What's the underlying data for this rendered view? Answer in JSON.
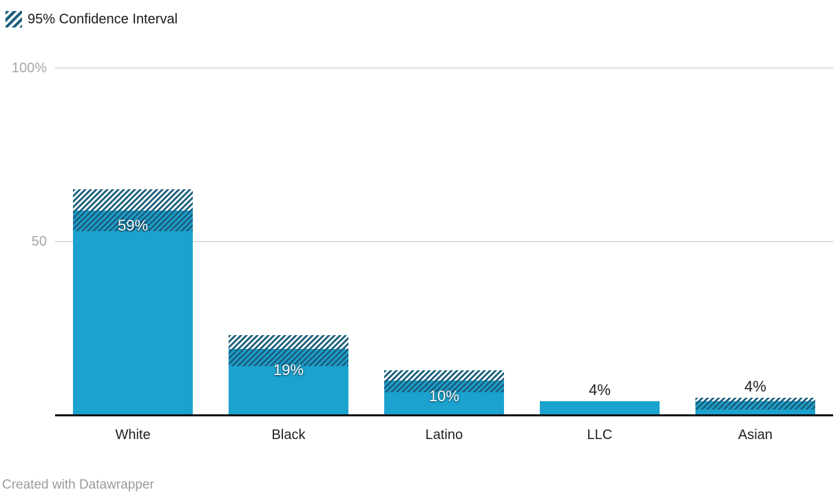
{
  "legend": {
    "label": "95% Confidence Interval"
  },
  "footer": {
    "text": "Created with Datawrapper"
  },
  "chart_data": {
    "type": "bar",
    "title": "",
    "categories": [
      "White",
      "Black",
      "Latino",
      "LLC",
      "Asian"
    ],
    "values": [
      59,
      19,
      10,
      4,
      4
    ],
    "value_labels": [
      "59%",
      "19%",
      "10%",
      "4%",
      "4%"
    ],
    "confidence_interval": {
      "label": "95% Confidence Interval",
      "low": [
        53,
        14,
        6.5,
        null,
        1.5
      ],
      "high": [
        65,
        23,
        13,
        null,
        5
      ]
    },
    "value_label_inside": [
      true,
      true,
      true,
      false,
      false
    ],
    "ylim": [
      0,
      100
    ],
    "y_ticks": [
      {
        "value": 100,
        "label": "100%"
      },
      {
        "value": 50,
        "label": "50"
      }
    ],
    "grid": "horizontal-lines",
    "legend_position": "top-left",
    "colors": {
      "bar": "#1CA2CE",
      "hatch": "#1B5F7D",
      "gridline": "#DEDEDE",
      "baseline": "#141414",
      "axis_text": "#A6A6A6",
      "category_text": "#1F1F1F",
      "value_label_inside": "#FFFFFF",
      "value_label_outside": "#1D1D1D",
      "legend_text": "#1A1A1A",
      "footer_text": "#9B9B9B"
    }
  }
}
